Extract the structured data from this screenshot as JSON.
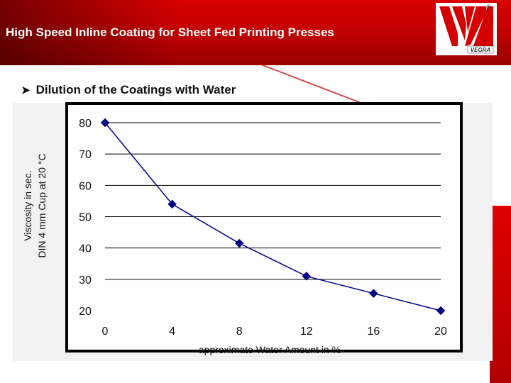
{
  "slide": {
    "title": "High Speed Inline Coating for Sheet Fed Printing Presses",
    "bullet": "Dilution of the Coatings with Water",
    "logo_text": "VEGRA",
    "reg_mark": "®"
  },
  "colors": {
    "header_red": "#c40000",
    "series_line": "#00008b",
    "marker": "#000080",
    "grid": "#000000"
  },
  "chart_data": {
    "type": "line",
    "title": "",
    "xlabel": "approximate Water Amount in %",
    "ylabel_lines": [
      "Viscosity in sec.",
      "DIN 4 mm Cup at 20 °C"
    ],
    "x": [
      0,
      4,
      8,
      12,
      16,
      20
    ],
    "y": [
      80,
      54,
      41.5,
      31,
      25.5,
      20
    ],
    "xlim": [
      0,
      20
    ],
    "ylim": [
      20,
      80
    ],
    "x_ticks": [
      "0",
      "4",
      "8",
      "12",
      "16",
      "20"
    ],
    "y_ticks": [
      "80",
      "70",
      "60",
      "50",
      "40",
      "30",
      "20"
    ],
    "grid": "horizontal",
    "marker": "diamond",
    "legend": "none"
  }
}
